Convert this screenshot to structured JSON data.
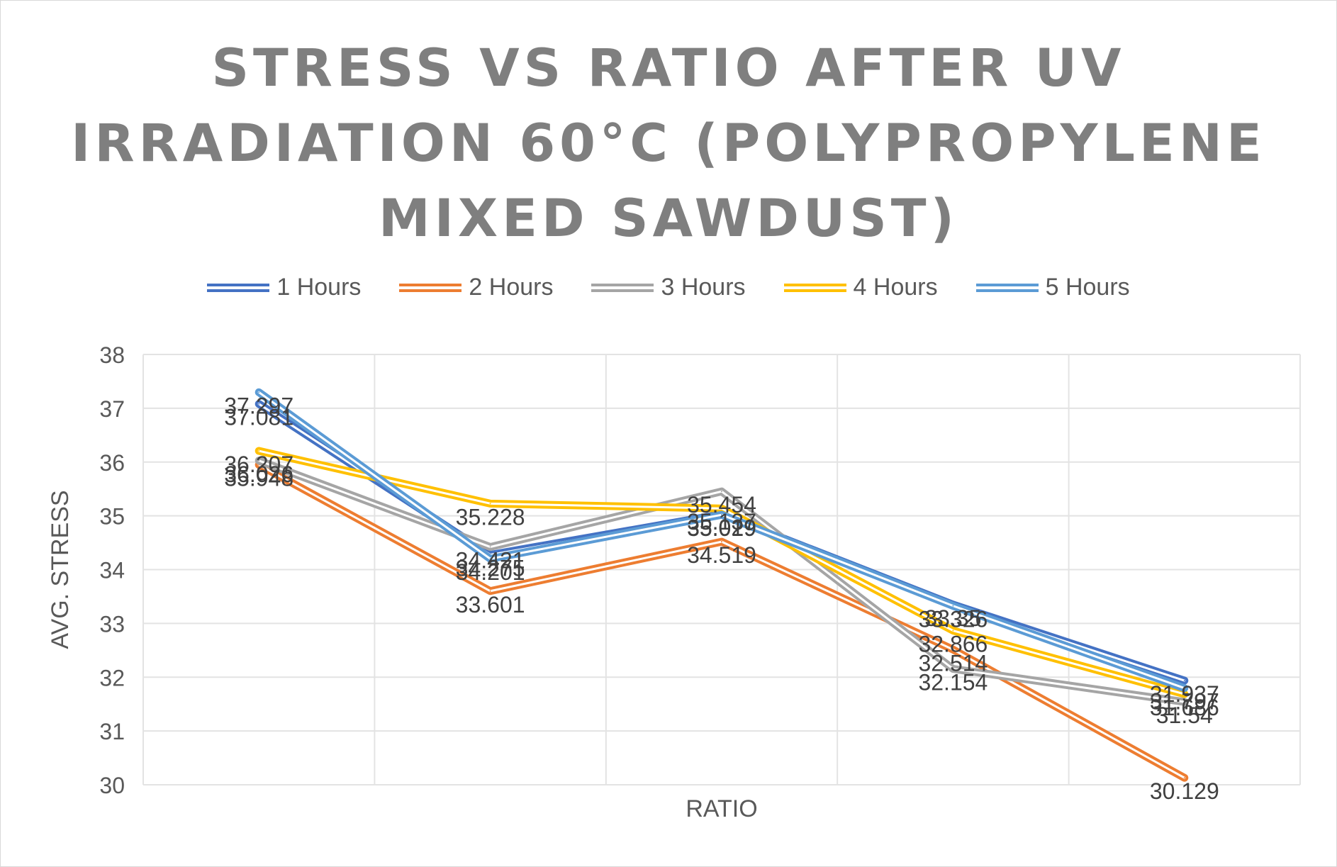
{
  "chart_data": {
    "type": "line",
    "title_lines": [
      "STRESS VS RATIO AFTER UV",
      "IRRADIATION 60°C (POLYPROPYLENE",
      "MIXED SAWDUST)"
    ],
    "xlabel": "RATIO",
    "ylabel": "AVG. STRESS",
    "ylim": [
      30,
      38
    ],
    "yticks": [
      "30",
      "31",
      "32",
      "33",
      "34",
      "35",
      "36",
      "37",
      "38"
    ],
    "categories": [
      "",
      "",
      "",
      "",
      ""
    ],
    "series": [
      {
        "name": "1 Hours",
        "color": "#4472c4",
        "values": [
          37.081,
          34.275,
          35.029,
          33.35,
          31.937
        ]
      },
      {
        "name": "2 Hours",
        "color": "#ed7d31",
        "values": [
          35.948,
          33.601,
          34.519,
          32.514,
          30.129
        ]
      },
      {
        "name": "3 Hours",
        "color": "#a5a5a5",
        "values": [
          36.026,
          34.421,
          35.454,
          32.154,
          31.54
        ]
      },
      {
        "name": "4 Hours",
        "color": "#ffc000",
        "values": [
          36.207,
          35.228,
          35.137,
          32.866,
          31.686
        ]
      },
      {
        "name": "5 Hours",
        "color": "#5b9bd5",
        "values": [
          37.297,
          34.201,
          35.019,
          33.326,
          31.797
        ]
      }
    ],
    "data_labels": [
      [
        "37.081",
        "34.275",
        "35.029",
        "33.35",
        "31.937"
      ],
      [
        "35.948",
        "33.601",
        "34.519",
        "32.514",
        "30.129"
      ],
      [
        "36.026",
        "34.421",
        "35.454",
        "32.154",
        "31.54"
      ],
      [
        "36.207",
        "35.228",
        "35.137",
        "32.866",
        "31.686"
      ],
      [
        "37.297",
        "34.201",
        "35.019",
        "33.326",
        "31.797"
      ]
    ],
    "grid": true,
    "legend_position": "top"
  }
}
